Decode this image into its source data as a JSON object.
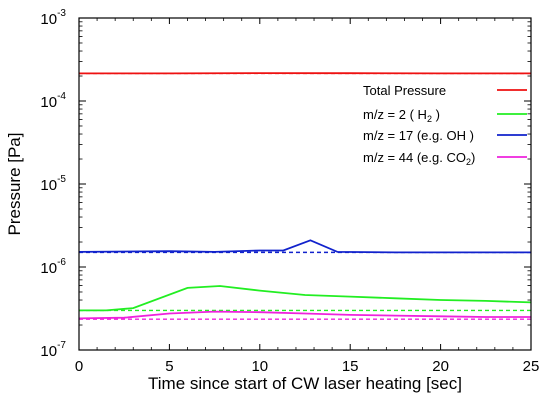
{
  "chart_data": {
    "type": "line",
    "xlabel": "Time since start of CW laser heating [sec]",
    "ylabel": "Pressure [Pa]",
    "xlim": [
      0,
      25
    ],
    "ylim": [
      1e-07,
      0.001
    ],
    "yscale": "log",
    "x_ticks": [
      "0",
      "5",
      "10",
      "15",
      "20",
      "25"
    ],
    "y_ticks": [
      {
        "base": "10",
        "exp": "-3",
        "value": 0.001
      },
      {
        "base": "10",
        "exp": "-4",
        "value": 0.0001
      },
      {
        "base": "10",
        "exp": "-5",
        "value": 1e-05
      },
      {
        "base": "10",
        "exp": "-6",
        "value": 1e-06
      },
      {
        "base": "10",
        "exp": "-7",
        "value": 1e-07
      }
    ],
    "legend_position": "right",
    "legend": [
      {
        "main": "Total Pressure",
        "sub": "",
        "tail": ""
      },
      {
        "main": "m/z = 2   ( H",
        "sub": "2",
        "tail": " )"
      },
      {
        "main": "m/z = 17 (e.g. OH )",
        "sub": "",
        "tail": ""
      },
      {
        "main": "m/z = 44 (e.g. CO",
        "sub": "2",
        "tail": ")"
      }
    ],
    "series": [
      {
        "name": "Total Pressure",
        "color": "#ee1111",
        "baseline": 0.000215,
        "x": [
          0,
          5,
          10,
          15,
          20,
          25
        ],
        "values": [
          0.000215,
          0.000215,
          0.000217,
          0.000216,
          0.000215,
          0.000215
        ]
      },
      {
        "name": "m/z = 2 ( H2 )",
        "color": "#22ee22",
        "baseline": 3e-07,
        "x": [
          0,
          1.5,
          3,
          6,
          7.8,
          10,
          12.5,
          15,
          17.5,
          20,
          22.5,
          25
        ],
        "values": [
          3e-07,
          3e-07,
          3.2e-07,
          5.6e-07,
          5.9e-07,
          5.2e-07,
          4.6e-07,
          4.4e-07,
          4.2e-07,
          4e-07,
          3.9e-07,
          3.75e-07
        ]
      },
      {
        "name": "m/z = 17 (e.g. OH )",
        "color": "#1122cc",
        "baseline": 1.5e-06,
        "x": [
          0,
          5,
          7.5,
          10,
          11.3,
          12.8,
          14.3,
          17.5,
          20,
          25
        ],
        "values": [
          1.52e-06,
          1.55e-06,
          1.52e-06,
          1.58e-06,
          1.58e-06,
          2.1e-06,
          1.52e-06,
          1.5e-06,
          1.5e-06,
          1.5e-06
        ]
      },
      {
        "name": "m/z = 44 (e.g. CO2)",
        "color": "#ee22dd",
        "baseline": 2.35e-07,
        "x": [
          0,
          2.5,
          5,
          7.5,
          10,
          12.5,
          15,
          17.5,
          20,
          22.5,
          25
        ],
        "values": [
          2.4e-07,
          2.45e-07,
          2.75e-07,
          2.9e-07,
          2.85e-07,
          2.75e-07,
          2.65e-07,
          2.6e-07,
          2.55e-07,
          2.5e-07,
          2.5e-07
        ]
      }
    ]
  }
}
